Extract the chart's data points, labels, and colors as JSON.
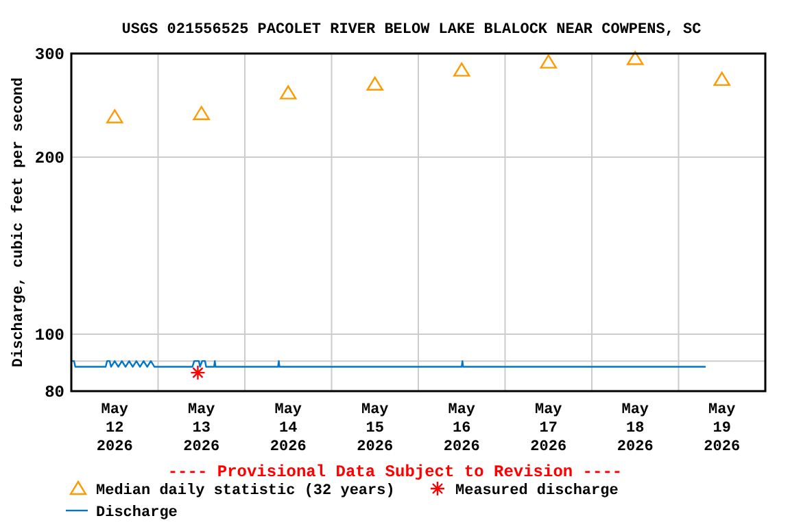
{
  "chart_data": {
    "type": "line",
    "title": "USGS 021556525 PACOLET RIVER BELOW LAKE BLALOCK NEAR COWPENS, SC",
    "ylabel": "Discharge, cubic feet per second",
    "annotations": [
      "---- Provisional Data Subject to Revision ----"
    ],
    "log": true,
    "grid": true,
    "legend": "bottom",
    "xlim": [
      "2026-05-12T00:00",
      "2026-05-20T00:00"
    ],
    "xticks": [
      {
        "value": "2026-05-12T12:00",
        "label": "May 12 2026"
      },
      {
        "value": "2026-05-13T00:00",
        "label": null
      },
      {
        "value": "2026-05-13T12:00",
        "label": "May 13 2026"
      },
      {
        "value": "2026-05-14T00:00",
        "label": null
      },
      {
        "value": "2026-05-14T12:00",
        "label": "May 14 2026"
      },
      {
        "value": "2026-05-15T00:00",
        "label": null
      },
      {
        "value": "2026-05-15T12:00",
        "label": "May 15 2026"
      },
      {
        "value": "2026-05-16T00:00",
        "label": null
      },
      {
        "value": "2026-05-16T12:00",
        "label": "May 16 2026"
      },
      {
        "value": "2026-05-17T00:00",
        "label": null
      },
      {
        "value": "2026-05-17T12:00",
        "label": "May 17 2026"
      },
      {
        "value": "2026-05-18T00:00",
        "label": null
      },
      {
        "value": "2026-05-18T12:00",
        "label": "May 18 2026"
      },
      {
        "value": "2026-05-19T00:00",
        "label": null
      },
      {
        "value": "2026-05-19T12:00",
        "label": "May 19 2026"
      }
    ],
    "ylim": [
      80,
      300
    ],
    "yticks": [
      80,
      {
        "value": 90,
        "label": null
      },
      100,
      200,
      300
    ],
    "series": [
      {
        "name": "Median daily statistic (32 years)",
        "type": "scatter",
        "marker": "triangle",
        "color": "#ff9900",
        "x": [
          "2026-05-12T12:00",
          "2026-05-13T12:00",
          "2026-05-14T12:00",
          "2026-05-15T12:00",
          "2026-05-16T12:00",
          "2026-05-17T12:00",
          "2026-05-18T12:00",
          "2026-05-19T12:00"
        ],
        "values": [
          234,
          237,
          257,
          266,
          281,
          290,
          294,
          271
        ]
      },
      {
        "name": "Measured discharge",
        "type": "scatter",
        "marker": "cross",
        "color": "#ff0000",
        "x": [
          "2026-05-13T11:00"
        ],
        "values": [
          86
        ]
      },
      {
        "name": "Discharge",
        "marker": "none",
        "color": "#0077cc",
        "x": [
          "2026-05-12T00:00",
          "2026-05-12T00:45",
          "2026-05-12T01:06",
          "2026-05-12T09:30",
          "2026-05-12T09:54",
          "2026-05-12T10:36",
          "2026-05-12T11:00",
          "2026-05-12T12:00",
          "2026-05-12T13:00",
          "2026-05-12T14:00",
          "2026-05-12T15:00",
          "2026-05-12T16:00",
          "2026-05-12T17:00",
          "2026-05-12T18:00",
          "2026-05-12T19:00",
          "2026-05-12T20:00",
          "2026-05-12T21:00",
          "2026-05-12T22:00",
          "2026-05-12T23:00",
          "2026-05-13T00:00",
          "2026-05-13T09:30",
          "2026-05-13T10:00",
          "2026-05-13T11:18",
          "2026-05-13T11:36",
          "2026-05-13T12:12",
          "2026-05-13T13:00",
          "2026-05-13T13:18",
          "2026-05-13T15:30",
          "2026-05-13T15:42",
          "2026-05-13T15:54",
          "2026-05-14T09:12",
          "2026-05-14T09:24",
          "2026-05-14T09:36",
          "2026-05-16T12:00",
          "2026-05-16T12:12",
          "2026-05-16T12:24",
          "2026-05-19T07:30"
        ],
        "values": [
          90,
          90,
          88,
          88,
          90,
          90,
          88,
          90,
          88,
          90,
          88,
          90,
          88,
          90,
          88,
          90,
          88,
          90,
          88,
          88,
          88,
          90,
          90,
          88,
          90,
          90,
          88,
          88,
          90,
          88,
          88,
          90,
          88,
          88,
          90,
          88,
          88
        ]
      }
    ]
  }
}
